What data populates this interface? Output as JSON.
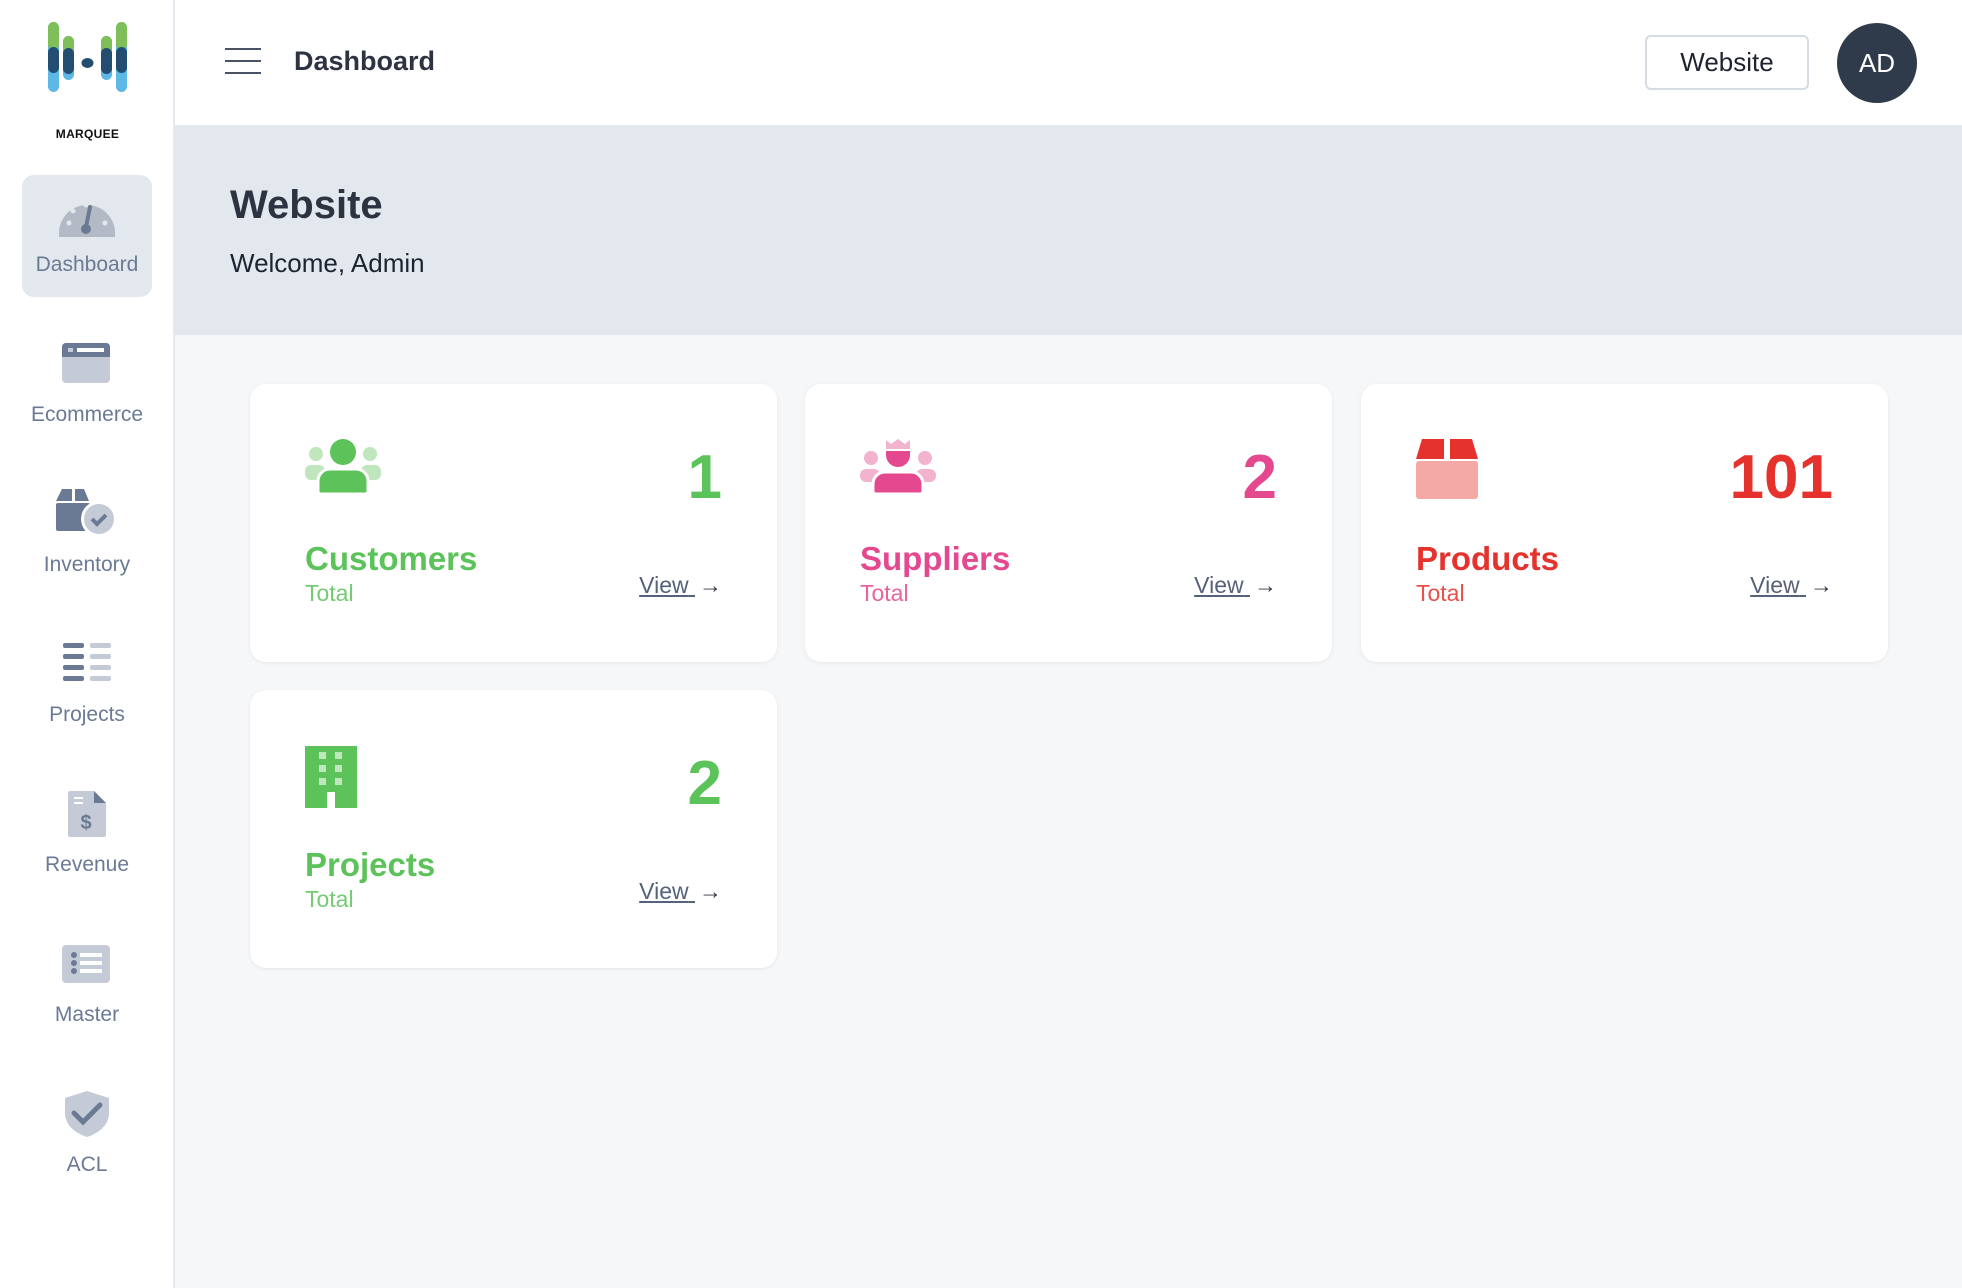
{
  "brand": {
    "name": "MARQUEE"
  },
  "sidebar": {
    "items": [
      {
        "label": "Dashboard"
      },
      {
        "label": "Ecommerce"
      },
      {
        "label": "Inventory"
      },
      {
        "label": "Projects"
      },
      {
        "label": "Revenue"
      },
      {
        "label": "Master"
      },
      {
        "label": "ACL"
      }
    ]
  },
  "header": {
    "title": "Dashboard",
    "website_button": "Website",
    "avatar_initials": "AD"
  },
  "banner": {
    "title": "Website",
    "welcome": "Welcome, Admin"
  },
  "colors": {
    "green": "#5cc35a",
    "pink": "#e4488f",
    "red": "#e5322d"
  },
  "cards": [
    {
      "name": "Customers",
      "count": "1",
      "sub": "Total",
      "link": "View",
      "icon": "users-icon"
    },
    {
      "name": "Suppliers",
      "count": "2",
      "sub": "Total",
      "link": "View",
      "icon": "suppliers-crown-icon"
    },
    {
      "name": "Products",
      "count": "101",
      "sub": "Total",
      "link": "View",
      "icon": "box-icon"
    },
    {
      "name": "Projects",
      "count": "2",
      "sub": "Total",
      "link": "View",
      "icon": "building-icon"
    }
  ],
  "arrow": "→"
}
